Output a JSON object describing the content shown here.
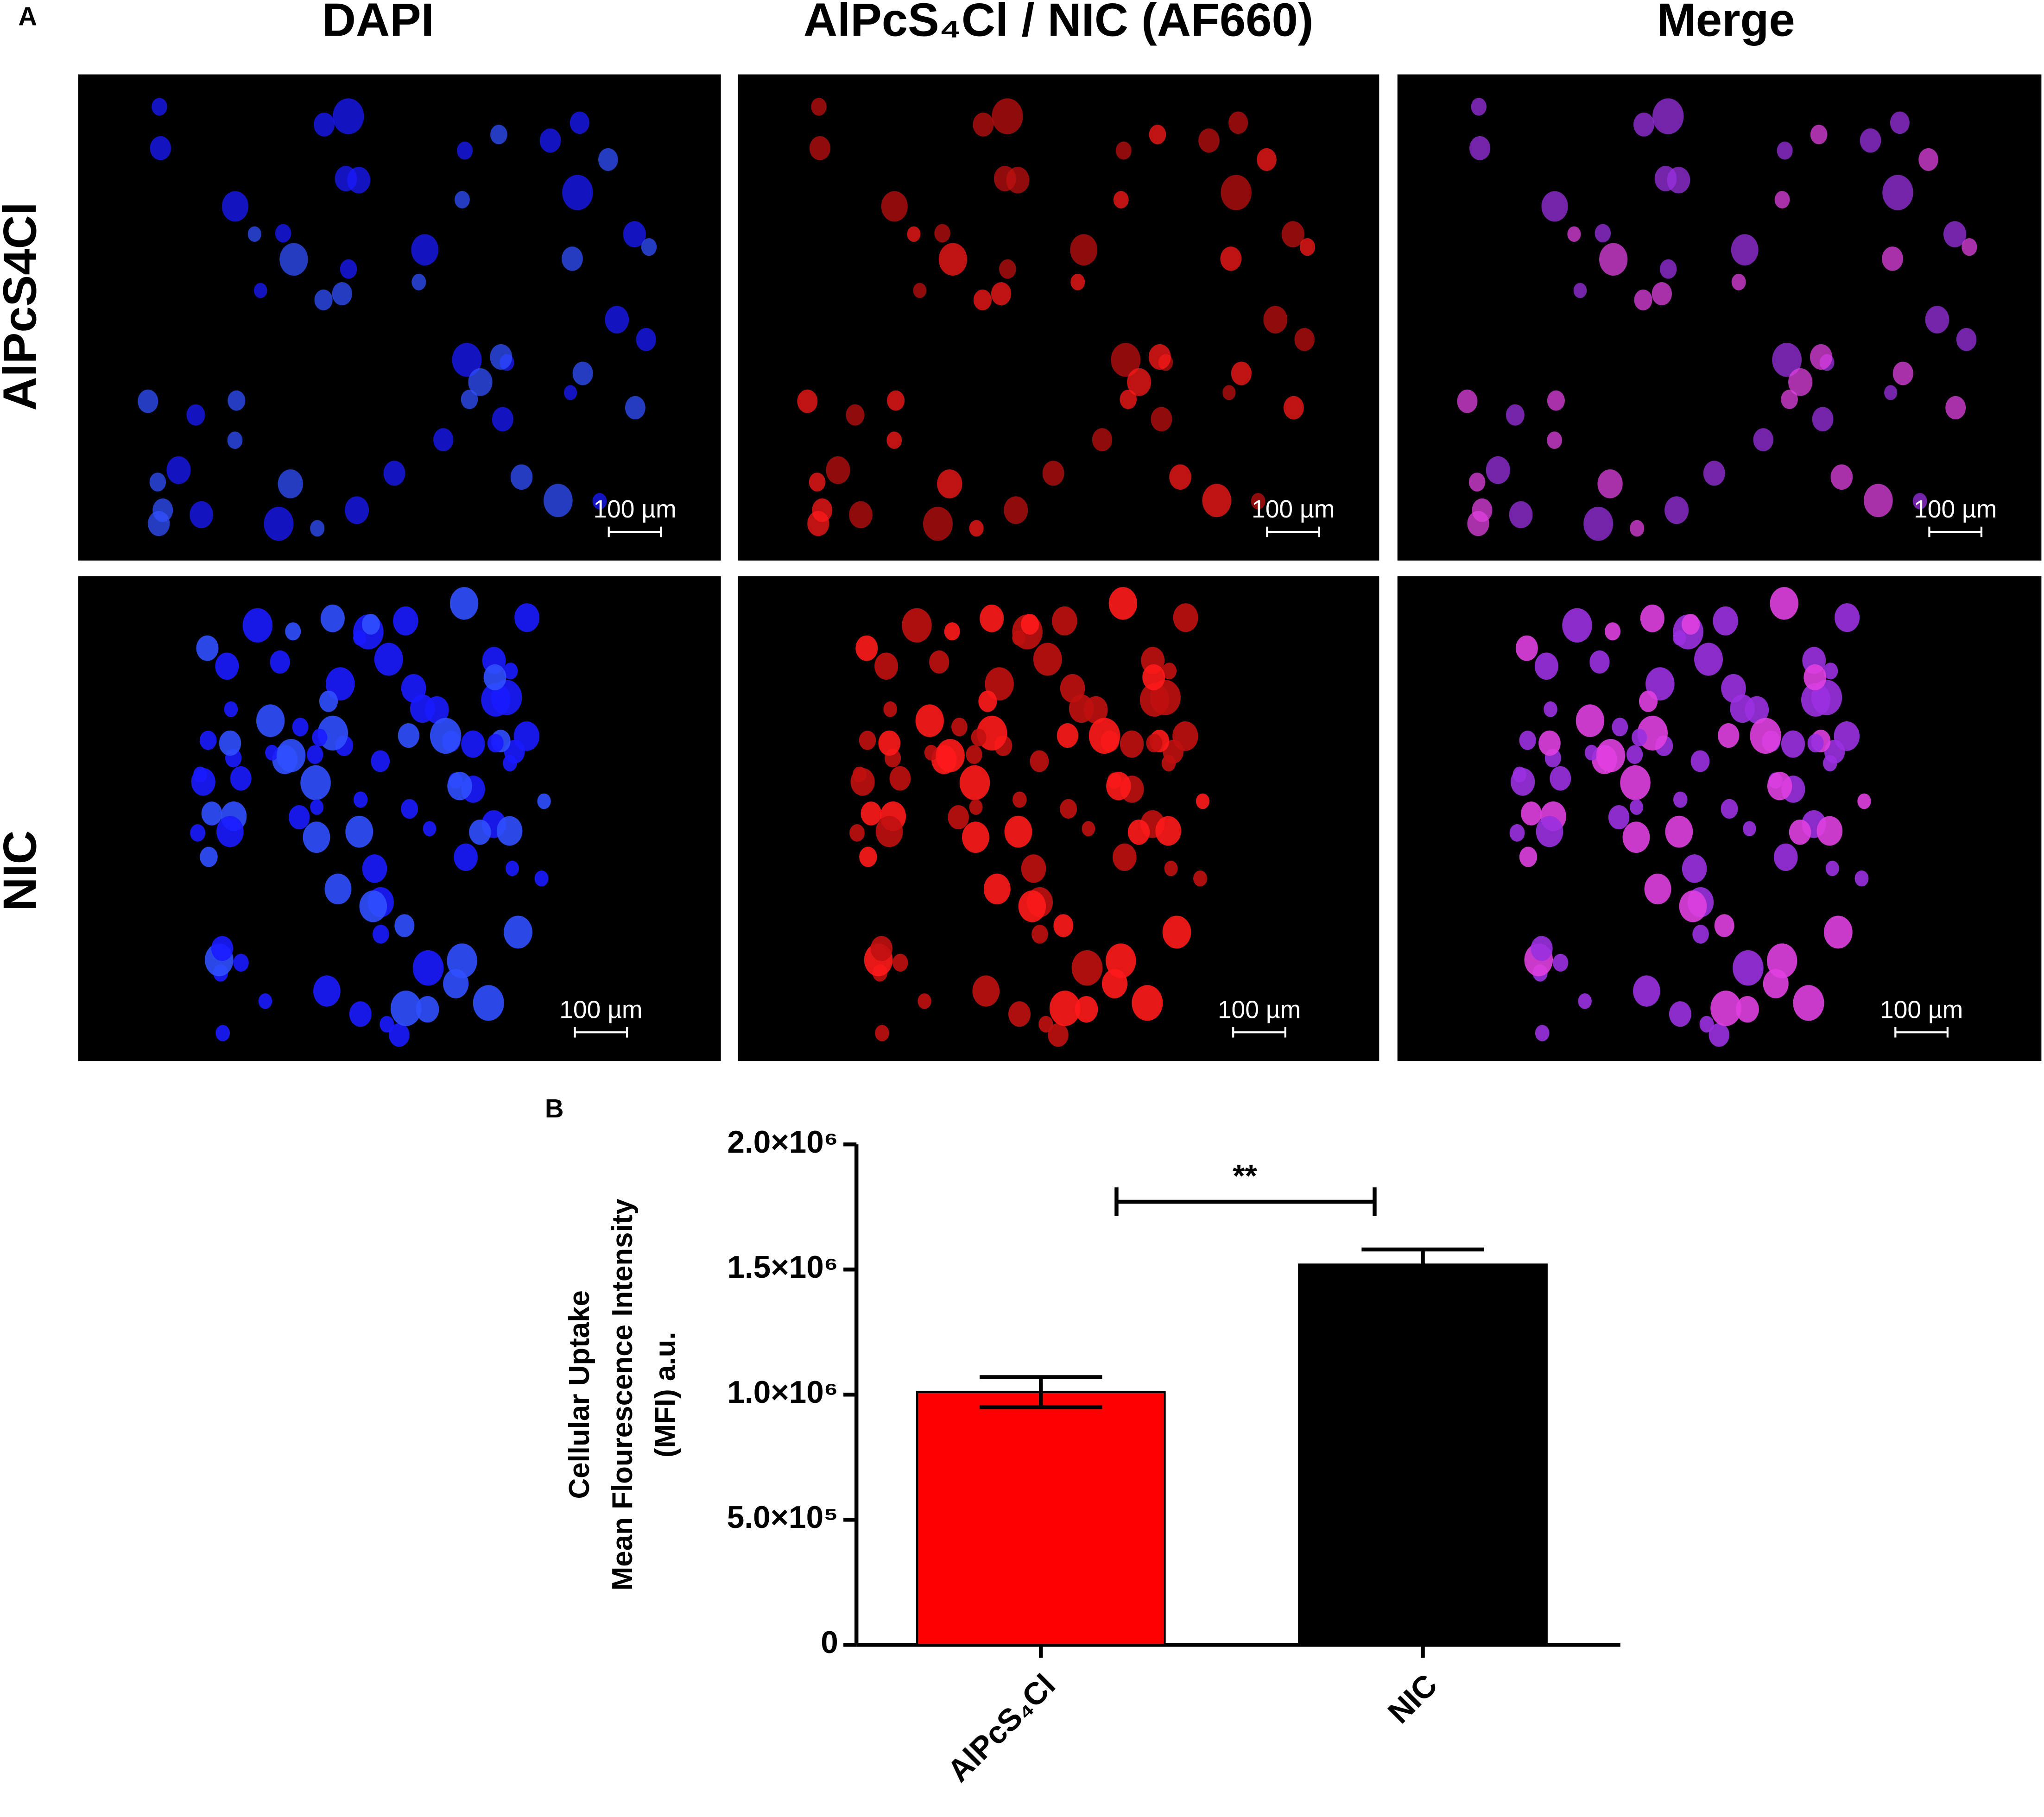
{
  "figure": {
    "panel_label": "A",
    "columns": [
      "DAPI",
      "AlPcS₄Cl / NIC (AF660)",
      "Merge"
    ],
    "rows": [
      "AlPcS4Cl",
      "NIC"
    ],
    "scale_bar": "100 µm"
  },
  "chart_data": {
    "type": "bar",
    "panel_label": "B",
    "ylabel": [
      "Cellular Uptake",
      "Mean Flourescence Intensity",
      "(MFI) a.u."
    ],
    "categories": [
      "AlPcS₄Cl",
      "NIC"
    ],
    "values": [
      1010000,
      1520000
    ],
    "errors": [
      60000,
      60000
    ],
    "colors": [
      "#ff0000",
      "#000000"
    ],
    "ylim": [
      0,
      2000000
    ],
    "yticks": [
      0,
      {
        "value": 500000,
        "label": "5.0×10⁵"
      },
      {
        "value": 1000000,
        "label": "1.0×10⁶"
      },
      {
        "value": 1500000,
        "label": "1.5×10⁶"
      },
      {
        "value": 2000000,
        "label": "2.0×10⁶"
      }
    ],
    "annotation": "**"
  }
}
